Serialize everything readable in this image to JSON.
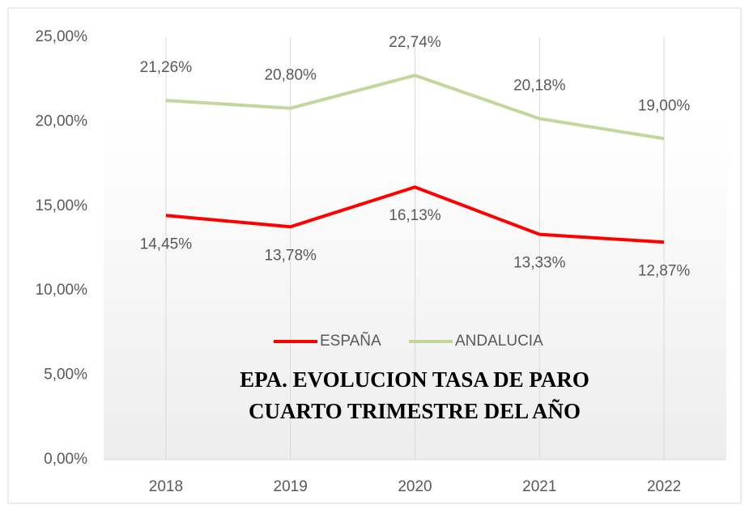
{
  "chart_data": {
    "type": "line",
    "title": [
      "EPA. EVOLUCION TASA DE PARO",
      "CUARTO TRIMESTRE DEL AÑO"
    ],
    "categories": [
      "2018",
      "2019",
      "2020",
      "2021",
      "2022"
    ],
    "series": [
      {
        "name": "ESPAÑA",
        "color": "#ff0000",
        "values": [
          14.45,
          13.78,
          16.13,
          13.33,
          12.87
        ],
        "value_labels": [
          "14,45%",
          "13,78%",
          "16,13%",
          "13,33%",
          "12,87%"
        ]
      },
      {
        "name": "ANDALUCIA",
        "color": "#c3d69b",
        "values": [
          21.26,
          20.8,
          22.74,
          20.18,
          19.0
        ],
        "value_labels": [
          "21,26%",
          "20,80%",
          "22,74%",
          "20,18%",
          "19,00%"
        ]
      }
    ],
    "ylim": [
      0,
      25
    ],
    "yticks": [
      {
        "value": 0,
        "label": "0,00%"
      },
      {
        "value": 5,
        "label": "5,00%"
      },
      {
        "value": 10,
        "label": "10,00%"
      },
      {
        "value": 15,
        "label": "15,00%"
      },
      {
        "value": 20,
        "label": "20,00%"
      },
      {
        "value": 25,
        "label": "25,00%"
      }
    ],
    "grid": true,
    "legend": "center"
  }
}
